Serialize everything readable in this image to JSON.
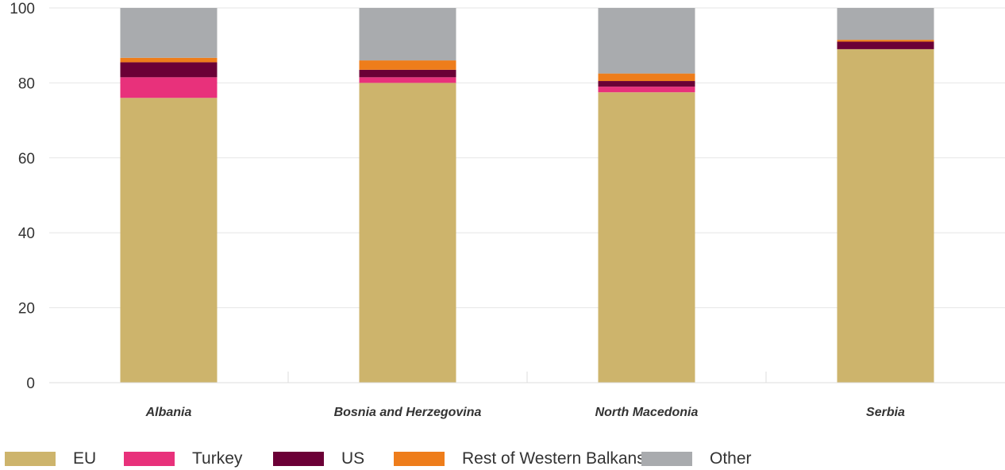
{
  "chart_data": {
    "type": "bar",
    "stacked": true,
    "categories": [
      "Albania",
      "Bosnia and Herzegovina",
      "North Macedonia",
      "Serbia"
    ],
    "series": [
      {
        "name": "EU",
        "color": "#CDB46C",
        "values": [
          76,
          80,
          77.5,
          89
        ]
      },
      {
        "name": "Turkey",
        "color": "#E8317B",
        "values": [
          5.5,
          1.5,
          1.5,
          0
        ]
      },
      {
        "name": "US",
        "color": "#6B0036",
        "values": [
          4,
          2,
          1.5,
          2
        ]
      },
      {
        "name": "Rest of Western Balkans",
        "color": "#EE7D1B",
        "values": [
          1.2,
          2.5,
          2,
          0.5
        ]
      },
      {
        "name": "Other",
        "color": "#A9ABAE",
        "values": [
          13.3,
          14,
          17.5,
          8.5
        ]
      }
    ],
    "yticks": [
      "0",
      "20",
      "40",
      "60",
      "80",
      "100"
    ],
    "ylim": [
      0,
      100
    ],
    "grid": true,
    "legend_position": "bottom"
  }
}
